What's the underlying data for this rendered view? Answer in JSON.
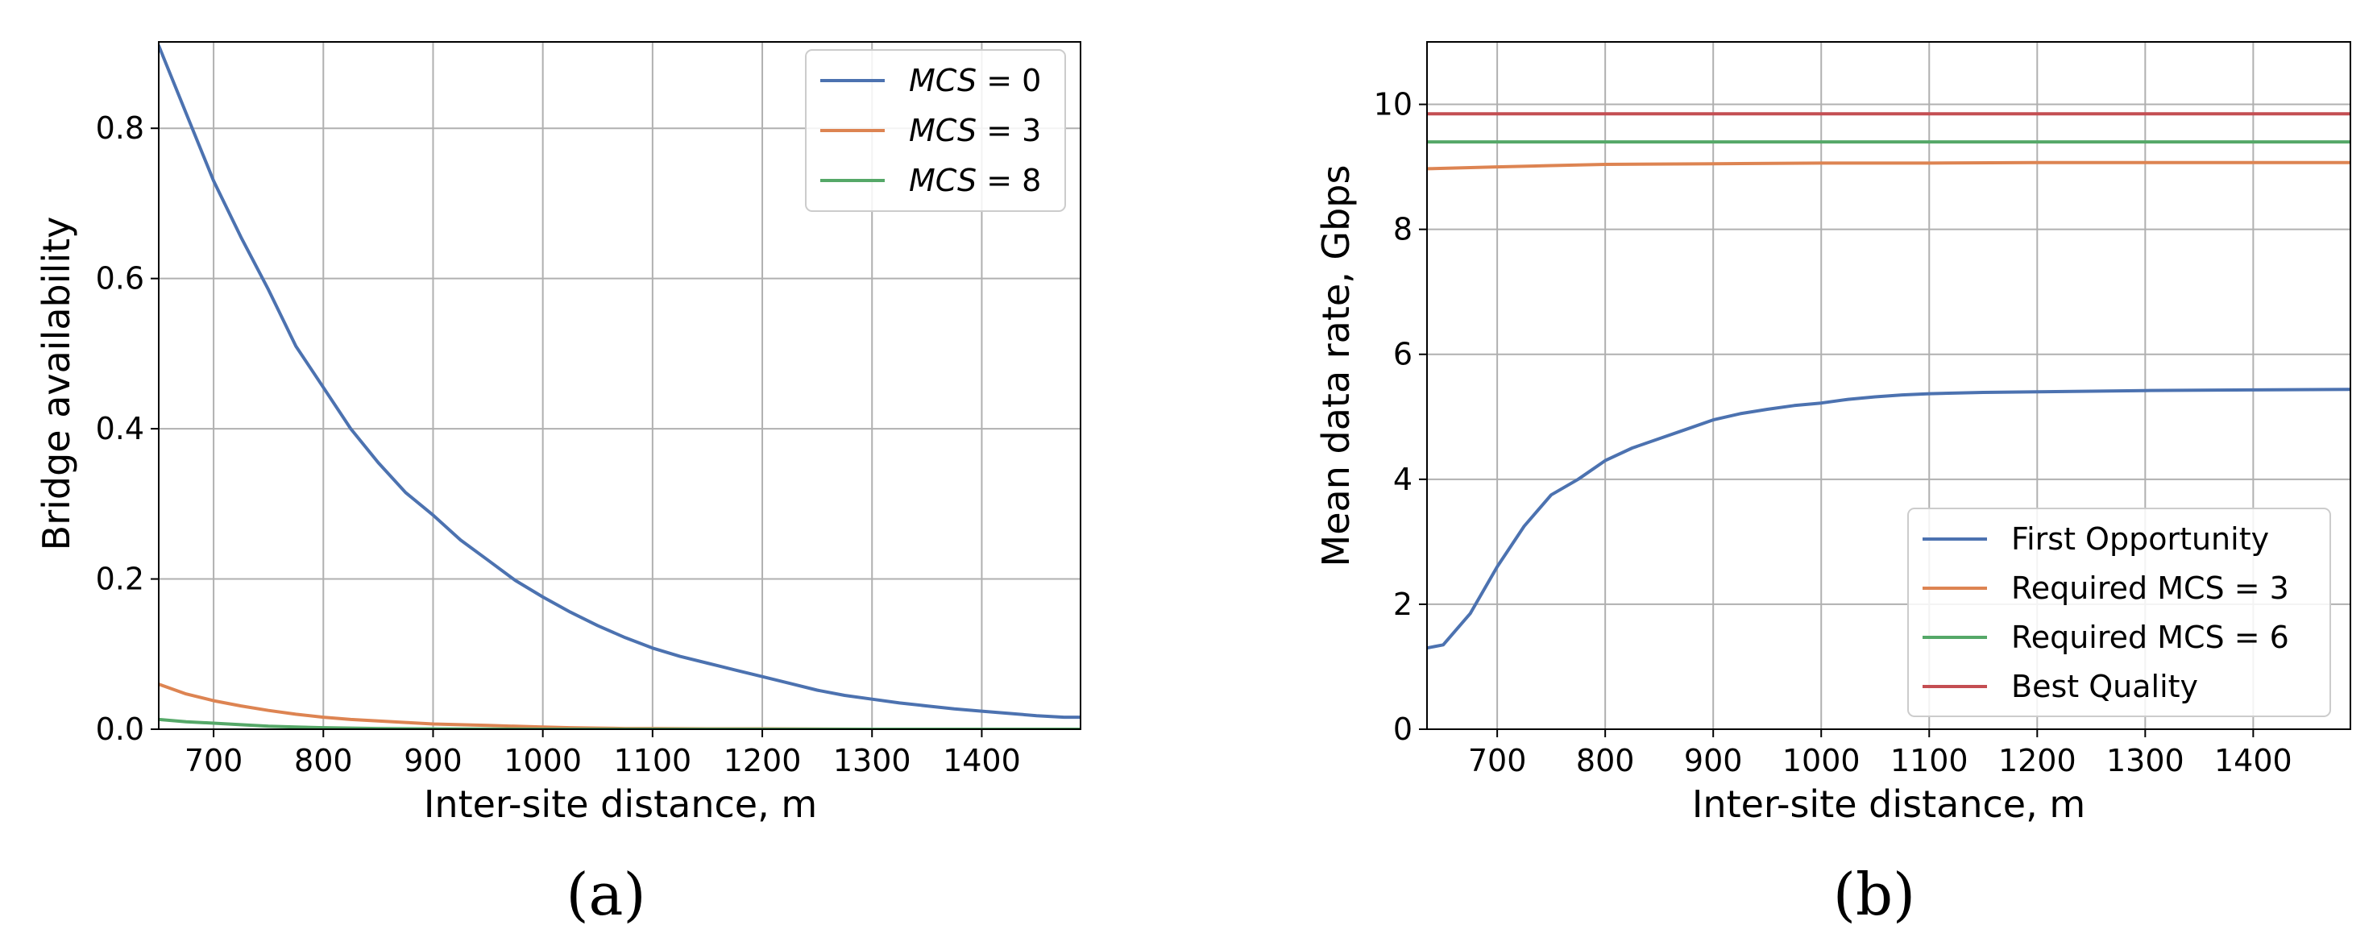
{
  "chart_data": [
    {
      "type": "line",
      "panel_label": "(a)",
      "title": "",
      "xlabel": "Inter-site distance, m",
      "ylabel": "Bridge availability",
      "xlim": [
        650,
        1490
      ],
      "ylim": [
        0,
        0.915
      ],
      "xticks": [
        700,
        800,
        900,
        1000,
        1100,
        1200,
        1300,
        1400
      ],
      "xtick_labels": [
        "700",
        "800",
        "900",
        "1000",
        "1100",
        "1200",
        "1300",
        "1400"
      ],
      "yticks": [
        0,
        0.2,
        0.4,
        0.6,
        0.8
      ],
      "ytick_labels": [
        "0.0",
        "0.2",
        "0.4",
        "0.6",
        "0.8"
      ],
      "grid": true,
      "legend_position": "top-right",
      "series": [
        {
          "name": "MCS = 0",
          "legend_var": "MCS",
          "legend_value": "= 0",
          "color": "#4c72b0",
          "x": [
            650,
            675,
            700,
            725,
            750,
            775,
            800,
            825,
            850,
            875,
            900,
            925,
            950,
            975,
            1000,
            1025,
            1050,
            1075,
            1100,
            1125,
            1150,
            1175,
            1200,
            1225,
            1250,
            1275,
            1300,
            1325,
            1350,
            1375,
            1400,
            1425,
            1450,
            1475,
            1490
          ],
          "y": [
            0.91,
            0.82,
            0.73,
            0.655,
            0.585,
            0.51,
            0.455,
            0.4,
            0.355,
            0.315,
            0.285,
            0.252,
            0.225,
            0.198,
            0.176,
            0.156,
            0.138,
            0.122,
            0.108,
            0.097,
            0.088,
            0.079,
            0.07,
            0.061,
            0.052,
            0.045,
            0.04,
            0.035,
            0.031,
            0.027,
            0.024,
            0.021,
            0.018,
            0.016,
            0.016
          ]
        },
        {
          "name": "MCS = 3",
          "legend_var": "MCS",
          "legend_value": "= 3",
          "color": "#dd8452",
          "x": [
            650,
            675,
            700,
            725,
            750,
            775,
            800,
            825,
            850,
            875,
            900,
            925,
            950,
            975,
            1000,
            1025,
            1050,
            1075,
            1100,
            1150,
            1200,
            1300,
            1400,
            1490
          ],
          "y": [
            0.06,
            0.047,
            0.038,
            0.031,
            0.025,
            0.02,
            0.016,
            0.013,
            0.011,
            0.009,
            0.007,
            0.006,
            0.005,
            0.004,
            0.003,
            0.002,
            0.0015,
            0.001,
            0.001,
            0.0005,
            0.0005,
            0.0,
            0.0,
            0.0
          ]
        },
        {
          "name": "MCS = 8",
          "legend_var": "MCS",
          "legend_value": "= 8",
          "color": "#55a868",
          "x": [
            650,
            675,
            700,
            725,
            750,
            775,
            800,
            850,
            900,
            1000,
            1100,
            1200,
            1300,
            1400,
            1490
          ],
          "y": [
            0.013,
            0.01,
            0.008,
            0.006,
            0.004,
            0.003,
            0.002,
            0.001,
            0.0005,
            0.0,
            0.0,
            0.0,
            0.0,
            0.0,
            0.0
          ]
        }
      ]
    },
    {
      "type": "line",
      "panel_label": "(b)",
      "title": "",
      "xlabel": "Inter-site distance, m",
      "ylabel": "Mean data rate, Gbps",
      "xlim": [
        635,
        1490
      ],
      "ylim": [
        0,
        11
      ],
      "xticks": [
        700,
        800,
        900,
        1000,
        1100,
        1200,
        1300,
        1400
      ],
      "xtick_labels": [
        "700",
        "800",
        "900",
        "1000",
        "1100",
        "1200",
        "1300",
        "1400"
      ],
      "yticks": [
        0,
        2,
        4,
        6,
        8,
        10
      ],
      "ytick_labels": [
        "0",
        "2",
        "4",
        "6",
        "8",
        "10"
      ],
      "grid": true,
      "legend_position": "bottom-right",
      "series": [
        {
          "name": "First Opportunity",
          "color": "#4c72b0",
          "x": [
            635,
            650,
            675,
            700,
            725,
            750,
            775,
            800,
            825,
            850,
            875,
            900,
            925,
            950,
            975,
            1000,
            1025,
            1050,
            1075,
            1100,
            1150,
            1200,
            1300,
            1400,
            1490
          ],
          "y": [
            1.3,
            1.35,
            1.85,
            2.6,
            3.25,
            3.75,
            4.0,
            4.3,
            4.5,
            4.65,
            4.8,
            4.95,
            5.05,
            5.12,
            5.18,
            5.22,
            5.28,
            5.32,
            5.35,
            5.37,
            5.39,
            5.4,
            5.42,
            5.43,
            5.44
          ]
        },
        {
          "name": "Required MCS = 3",
          "color": "#dd8452",
          "x": [
            635,
            700,
            750,
            800,
            900,
            1000,
            1100,
            1200,
            1300,
            1400,
            1490
          ],
          "y": [
            8.97,
            9.0,
            9.02,
            9.04,
            9.05,
            9.06,
            9.06,
            9.07,
            9.07,
            9.07,
            9.07
          ]
        },
        {
          "name": "Required MCS = 6",
          "color": "#55a868",
          "x": [
            635,
            1490
          ],
          "y": [
            9.4,
            9.4
          ]
        },
        {
          "name": "Best Quality",
          "color": "#c44e52",
          "x": [
            635,
            1490
          ],
          "y": [
            9.85,
            9.85
          ]
        }
      ]
    }
  ]
}
